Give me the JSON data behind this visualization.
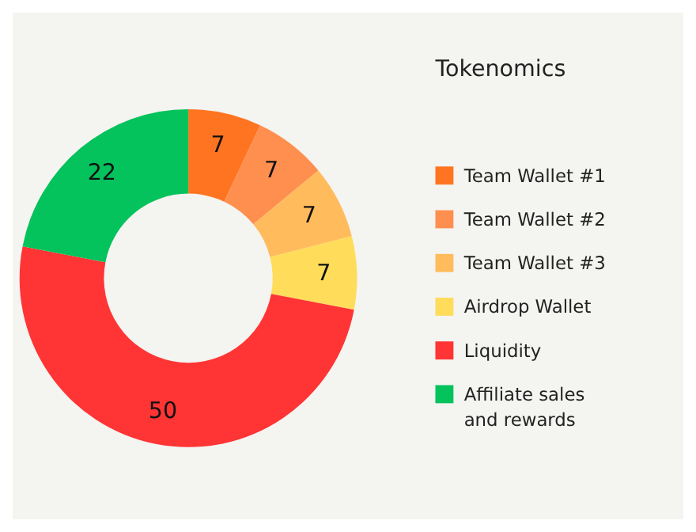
{
  "chart_data": {
    "type": "donut",
    "legend_title": "Tokenomics",
    "categories": [
      "Team Wallet #1",
      "Team Wallet #2",
      "Team Wallet #3",
      "Airdrop Wallet",
      "Liquidity",
      "Affiliate sales and rewards"
    ],
    "values": [
      7,
      7,
      7,
      7,
      50,
      22
    ],
    "colors": [
      "#ff7421",
      "#ff8f4f",
      "#ffbb5c",
      "#ffdc5a",
      "#ff3434",
      "#04c25c"
    ],
    "data_labels": true,
    "legend": "right"
  }
}
